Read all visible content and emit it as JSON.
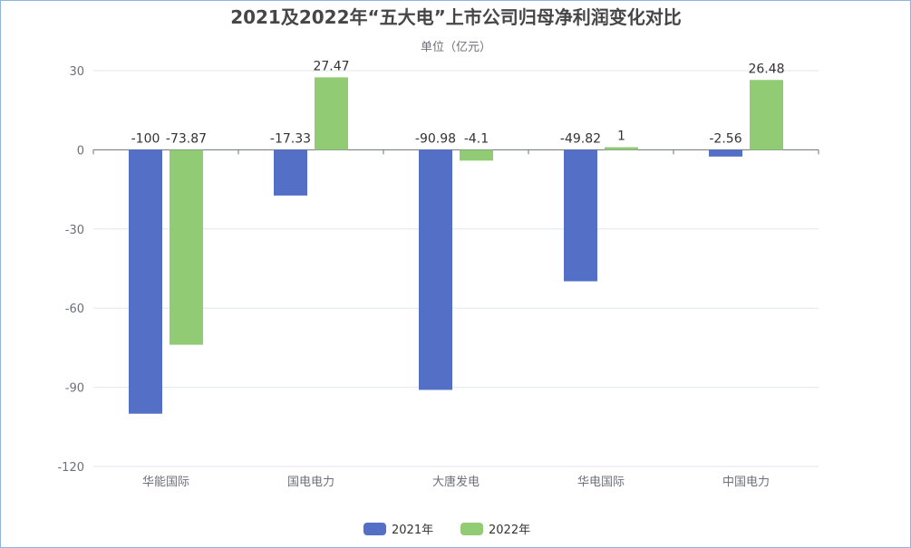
{
  "chart_data": {
    "type": "bar",
    "title": "2021及2022年“五大电”上市公司归母净利润变化对比",
    "subtitle": "单位（亿元）",
    "categories": [
      "华能国际",
      "国电电力",
      "大唐发电",
      "华电国际",
      "中国电力"
    ],
    "series": [
      {
        "name": "2021年",
        "color": "#5470c6",
        "values": [
          -100,
          -17.33,
          -90.98,
          -49.82,
          -2.56
        ]
      },
      {
        "name": "2022年",
        "color": "#91cc75",
        "values": [
          -73.87,
          27.47,
          -4.1,
          1,
          26.48
        ]
      }
    ],
    "y_ticks": [
      30,
      0,
      -30,
      -60,
      -90,
      -120
    ],
    "ylim": [
      -120,
      30
    ],
    "grid": true,
    "legend_position": "bottom-center"
  }
}
